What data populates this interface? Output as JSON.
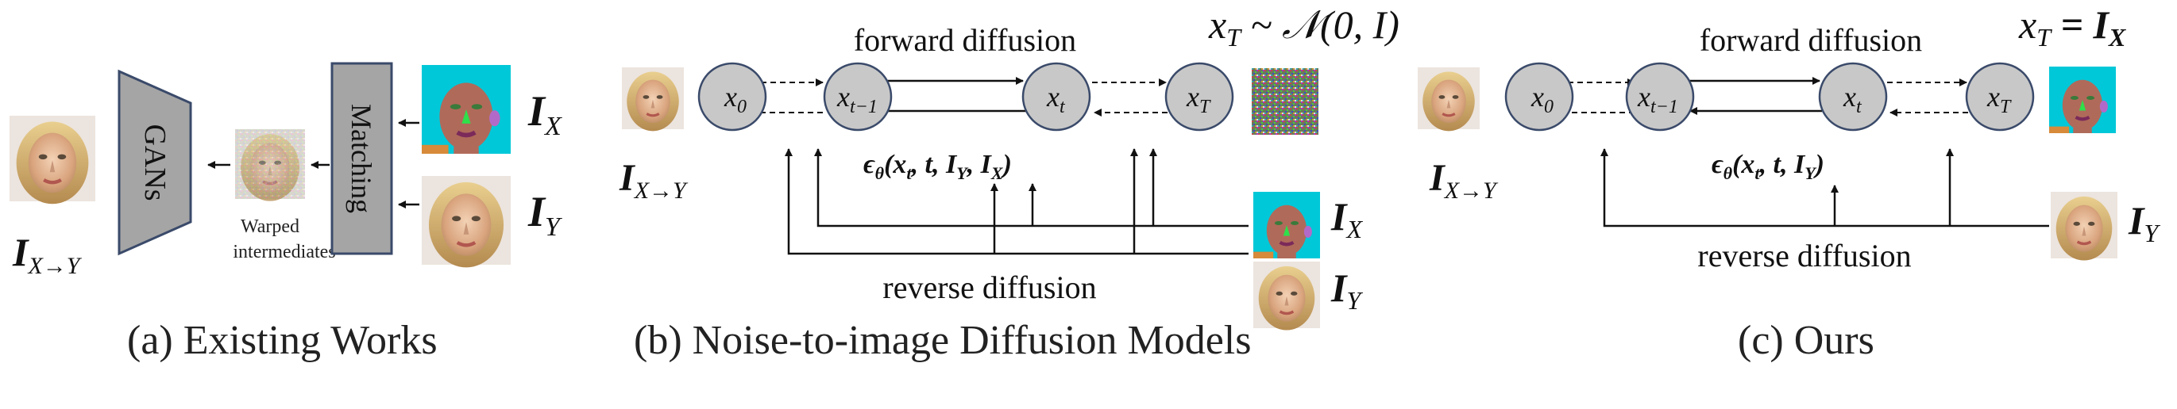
{
  "panels": {
    "a": {
      "caption": "(a) Existing Works",
      "gans_label": "GANs",
      "matching_label": "Matching",
      "warped_line1": "Warped",
      "warped_line2": "intermediates",
      "ix_label": "I",
      "ix_sub": "X",
      "iy_label": "I",
      "iy_sub": "Y",
      "out_label": "I",
      "out_sub": "X→Y"
    },
    "b": {
      "caption": "(b) Noise-to-image Diffusion Models",
      "forward_label": "forward diffusion",
      "reverse_label": "reverse diffusion",
      "xt_dist": "x",
      "xt_dist_sub": "T",
      "xt_dist_rest": " ~ 𝒩(0, I)",
      "nodes": [
        {
          "base": "x",
          "sub": "0"
        },
        {
          "base": "x",
          "sub": "t−1"
        },
        {
          "base": "x",
          "sub": "t"
        },
        {
          "base": "x",
          "sub": "T"
        }
      ],
      "eps_label": "ϵ",
      "eps_sub": "θ",
      "eps_args": "(x",
      "eps_args_sub": "t",
      "eps_args_rest": ", t, I",
      "eps_args_sub2": "Y",
      "eps_args_rest2": ", I",
      "eps_args_sub3": "X",
      "eps_args_close": ")",
      "out_label": "I",
      "out_sub": "X→Y",
      "ix_label": "I",
      "ix_sub": "X",
      "iy_label": "I",
      "iy_sub": "Y"
    },
    "c": {
      "caption": "(c) Ours",
      "forward_label": "forward diffusion",
      "reverse_label": "reverse diffusion",
      "xt_eq": "x",
      "xt_eq_sub": "T",
      "xt_eq_rest": " = I",
      "xt_eq_sub2": "X",
      "nodes": [
        {
          "base": "x",
          "sub": "0"
        },
        {
          "base": "x",
          "sub": "t−1"
        },
        {
          "base": "x",
          "sub": "t"
        },
        {
          "base": "x",
          "sub": "T"
        }
      ],
      "eps_label": "ϵ",
      "eps_sub": "θ",
      "eps_args": "(x",
      "eps_args_sub": "t",
      "eps_args_rest": ", t, I",
      "eps_args_sub2": "Y",
      "eps_args_close": ")",
      "out_label": "I",
      "out_sub": "X→Y",
      "iy_label": "I",
      "iy_sub": "Y"
    }
  },
  "colors": {
    "node_fill": "#c8c8c8",
    "box_fill": "#a5a5a5",
    "box_stroke": "#3a4a6a",
    "seg_bg": "#00c8d8",
    "skin": "#b06a5a",
    "face_photo": "#e8c4a0"
  }
}
